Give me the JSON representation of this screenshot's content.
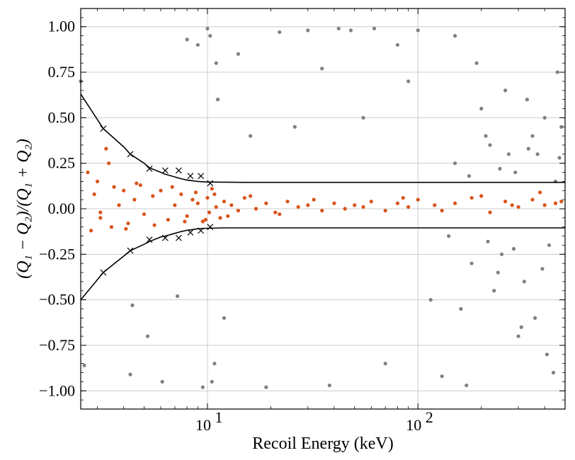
{
  "chart_data": {
    "type": "scatter",
    "title": "",
    "xlabel": "Recoil Energy (keV)",
    "ylabel": "(Q₁ − Q₂)/(Q₁ + Q₂)",
    "xscale": "log",
    "xlim": [
      2.5,
      500
    ],
    "ylim": [
      -1.1,
      1.1
    ],
    "grid": true,
    "x_tick_labels": [
      {
        "base": "10",
        "exp": "1",
        "value": 10
      },
      {
        "base": "10",
        "exp": "2",
        "value": 100
      }
    ],
    "y_tick_labels": [
      "1.00",
      "0.75",
      "0.50",
      "0.25",
      "0.00",
      "−0.25",
      "−0.50",
      "−0.75",
      "−1.00"
    ],
    "y_tick_values": [
      1.0,
      0.75,
      0.5,
      0.25,
      0.0,
      -0.25,
      -0.5,
      -0.75,
      -1.0
    ],
    "colors": {
      "selected": "#d95319",
      "rejected": "#808080",
      "band": "#000000",
      "markers": "#000000",
      "grid": "#cccccc"
    },
    "band_upper": {
      "x": [
        2.5,
        3,
        3.2,
        4,
        4.3,
        5,
        5.3,
        6,
        6.3,
        7,
        7.5,
        8,
        9,
        10,
        12,
        15,
        20,
        50,
        100,
        200,
        500
      ],
      "y": [
        0.63,
        0.49,
        0.44,
        0.34,
        0.3,
        0.25,
        0.225,
        0.2,
        0.19,
        0.175,
        0.165,
        0.158,
        0.15,
        0.147,
        0.146,
        0.145,
        0.145,
        0.145,
        0.145,
        0.145,
        0.145
      ]
    },
    "band_lower": {
      "x": [
        2.5,
        3,
        3.2,
        4,
        4.3,
        5,
        5.3,
        6,
        6.3,
        7,
        7.5,
        8,
        9,
        10,
        12,
        15,
        20,
        50,
        100,
        200,
        500
      ],
      "y": [
        -0.5,
        -0.39,
        -0.35,
        -0.26,
        -0.23,
        -0.195,
        -0.18,
        -0.155,
        -0.15,
        -0.135,
        -0.125,
        -0.118,
        -0.11,
        -0.107,
        -0.105,
        -0.105,
        -0.105,
        -0.105,
        -0.105,
        -0.105,
        -0.105
      ]
    },
    "cross_markers": {
      "x": [
        3.2,
        3.2,
        4.3,
        4.3,
        5.3,
        5.3,
        6.3,
        6.3,
        7.3,
        7.3,
        8.3,
        8.3,
        9.3,
        9.3,
        10.3,
        10.3
      ],
      "y": [
        0.44,
        -0.35,
        0.3,
        -0.23,
        0.22,
        -0.17,
        0.21,
        -0.16,
        0.21,
        -0.16,
        0.18,
        -0.13,
        0.18,
        -0.12,
        0.14,
        -0.1
      ]
    },
    "series": [
      {
        "key": "selected",
        "x": [
          2.7,
          2.8,
          2.9,
          3.0,
          3.1,
          3.3,
          3.5,
          3.6,
          3.8,
          4.0,
          4.2,
          4.5,
          4.8,
          5.0,
          5.5,
          6.0,
          6.5,
          7.0,
          7.5,
          8.0,
          8.5,
          9.0,
          9.5,
          10.0,
          10.2,
          10.5,
          11.0,
          11.5,
          12.0,
          13.0,
          14.0,
          15.0,
          17.0,
          19.0,
          21.0,
          24.0,
          27.0,
          30.0,
          35.0,
          40.0,
          45.0,
          50.0,
          60.0,
          70.0,
          80.0,
          90.0,
          100.0,
          120.0,
          150.0,
          180.0,
          220.0,
          260.0,
          300.0,
          350.0,
          400.0,
          450.0,
          3.1,
          3.4,
          4.1,
          4.6,
          5.6,
          6.8,
          7.8,
          8.8,
          9.8,
          10.8,
          12.5,
          16.0,
          22.0,
          32.0,
          55.0,
          85.0,
          130.0,
          200.0,
          280.0,
          380.0,
          480.0
        ],
        "y": [
          0.2,
          -0.12,
          0.08,
          0.15,
          -0.05,
          0.33,
          -0.1,
          0.12,
          0.02,
          0.1,
          -0.08,
          0.05,
          0.13,
          -0.03,
          0.07,
          0.1,
          -0.06,
          0.02,
          0.08,
          -0.04,
          0.05,
          0.03,
          -0.07,
          0.06,
          -0.02,
          0.11,
          0.01,
          -0.05,
          0.04,
          0.02,
          -0.01,
          0.06,
          0.0,
          0.03,
          -0.02,
          0.04,
          0.01,
          0.02,
          -0.01,
          0.03,
          0.0,
          0.02,
          0.04,
          -0.01,
          0.03,
          0.01,
          0.05,
          0.02,
          0.03,
          0.06,
          -0.02,
          0.04,
          0.01,
          0.05,
          0.02,
          0.03,
          -0.02,
          0.25,
          -0.11,
          0.14,
          -0.09,
          0.12,
          -0.07,
          0.09,
          -0.06,
          0.08,
          -0.04,
          0.07,
          -0.03,
          0.05,
          0.01,
          0.06,
          -0.01,
          0.07,
          0.02,
          0.09,
          0.04
        ]
      },
      {
        "key": "rejected",
        "x": [
          2.5,
          2.6,
          4.3,
          4.4,
          5.2,
          6.1,
          7.2,
          8.0,
          9.0,
          9.5,
          10.0,
          10.3,
          10.5,
          10.8,
          11.0,
          11.2,
          12.0,
          14.0,
          16.0,
          19.0,
          22.0,
          26.0,
          30.0,
          35.0,
          38.0,
          42.0,
          48.0,
          55.0,
          62.0,
          70.0,
          80.0,
          90.0,
          100.0,
          115.0,
          130.0,
          150.0,
          170.0,
          190.0,
          210.0,
          240.0,
          270.0,
          300.0,
          330.0,
          360.0,
          400.0,
          440.0,
          480.0,
          150.0,
          180.0,
          220.0,
          250.0,
          290.0,
          320.0,
          370.0,
          420.0,
          470.0,
          160.0,
          200.0,
          230.0,
          260.0,
          310.0,
          350.0,
          410.0,
          460.0,
          140.0,
          175.0,
          215.0,
          245.0,
          285.0,
          335.0,
          390.0,
          450.0
        ],
        "y": [
          0.7,
          -0.86,
          -0.91,
          -0.53,
          -0.7,
          -0.95,
          -0.48,
          0.93,
          0.9,
          -0.98,
          0.99,
          0.95,
          -0.95,
          -0.85,
          0.8,
          0.6,
          -0.6,
          0.85,
          0.4,
          -0.98,
          0.97,
          0.45,
          0.98,
          0.77,
          -0.97,
          0.99,
          0.98,
          0.5,
          0.99,
          -0.85,
          0.9,
          0.7,
          0.98,
          -0.5,
          -0.92,
          0.95,
          -0.97,
          0.8,
          0.4,
          -0.35,
          0.3,
          -0.7,
          0.6,
          -0.6,
          0.5,
          -0.9,
          0.45,
          0.25,
          -0.3,
          0.35,
          -0.25,
          0.2,
          -0.4,
          0.3,
          -0.2,
          0.28,
          -0.55,
          0.55,
          -0.45,
          0.65,
          -0.65,
          0.4,
          -0.8,
          0.75,
          -0.15,
          0.18,
          -0.18,
          0.22,
          -0.22,
          0.33,
          -0.33,
          0.15
        ]
      }
    ]
  }
}
